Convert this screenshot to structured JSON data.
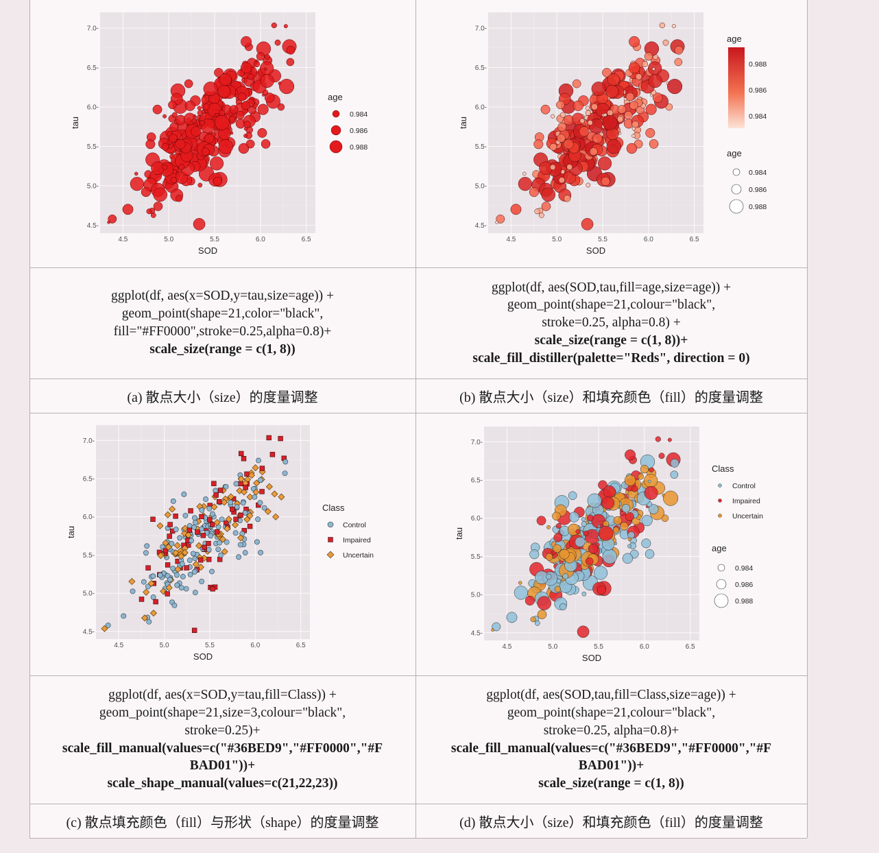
{
  "panels": [
    {
      "id": "a",
      "code_lines": [
        {
          "text": "ggplot(df, aes(x=SOD,y=tau,size=age)) +",
          "bold": false
        },
        {
          "text": "geom_point(shape=21,color=\"black\",",
          "bold": false
        },
        {
          "text": "fill=\"#FF0000\",stroke=0.25,alpha=0.8)+",
          "bold": false
        },
        {
          "text": "scale_size(range = c(1, 8))",
          "bold": true
        }
      ],
      "caption": "(a) 散点大小（size）的度量调整"
    },
    {
      "id": "b",
      "code_lines": [
        {
          "text": "ggplot(df, aes(SOD,tau,fill=age,size=age)) +",
          "bold": false
        },
        {
          "text": "geom_point(shape=21,colour=\"black\",",
          "bold": false
        },
        {
          "text": "stroke=0.25, alpha=0.8) +",
          "bold": false
        },
        {
          "text": "scale_size(range = c(1, 8))+",
          "bold": true
        },
        {
          "text": "scale_fill_distiller(palette=\"Reds\", direction = 0)",
          "bold": true
        }
      ],
      "caption": "(b) 散点大小（size）和填充颜色（fill）的度量调整"
    },
    {
      "id": "c",
      "code_lines": [
        {
          "text": "ggplot(df, aes(x=SOD,y=tau,fill=Class)) +",
          "bold": false
        },
        {
          "text": "geom_point(shape=21,size=3,colour=\"black\",",
          "bold": false
        },
        {
          "text": "stroke=0.25)+",
          "bold": false
        },
        {
          "text": "scale_fill_manual(values=c(\"#36BED9\",\"#FF0000\",\"#F",
          "bold": true
        },
        {
          "text": "BAD01\"))+",
          "bold": true
        },
        {
          "text": "scale_shape_manual(values=c(21,22,23))",
          "bold": true
        }
      ],
      "caption": "(c) 散点填充颜色（fill）与形状（shape）的度量调整"
    },
    {
      "id": "d",
      "code_lines": [
        {
          "text": "ggplot(df, aes(SOD,tau,fill=Class,size=age)) +",
          "bold": false
        },
        {
          "text": "geom_point(shape=21,colour=\"black\",",
          "bold": false
        },
        {
          "text": "stroke=0.25, alpha=0.8)+",
          "bold": false
        },
        {
          "text": "scale_fill_manual(values=c(\"#36BED9\",\"#FF0000\",\"#F",
          "bold": true
        },
        {
          "text": "BAD01\"))+",
          "bold": true
        },
        {
          "text": "scale_size(range = c(1, 8))",
          "bold": true
        }
      ],
      "caption": "(d) 散点大小（size）和填充颜色（fill）的度量调整"
    }
  ],
  "chart_data": [
    {
      "panel": "a",
      "type": "scatter",
      "xlabel": "SOD",
      "ylabel": "tau",
      "xlim": [
        4.25,
        6.6
      ],
      "ylim": [
        4.4,
        7.2
      ],
      "xticks": [
        "4.5",
        "5.0",
        "5.5",
        "6.0",
        "6.5"
      ],
      "yticks": [
        "4.5-",
        "5.0-",
        "5.5-",
        "6.0-",
        "6.5-",
        "7.0-"
      ],
      "mapping": {
        "size": "age",
        "fill": "#FF0000",
        "alpha": 0.8
      },
      "legends": [
        {
          "title": "age",
          "kind": "size",
          "labels": [
            "0.984",
            "0.986",
            "0.988"
          ]
        }
      ]
    },
    {
      "panel": "b",
      "type": "scatter",
      "xlabel": "SOD",
      "ylabel": "tau",
      "xlim": [
        4.25,
        6.6
      ],
      "ylim": [
        4.4,
        7.2
      ],
      "xticks": [
        "4.5",
        "5.0",
        "5.5",
        "6.0",
        "6.5"
      ],
      "yticks": [
        "4.5-",
        "5.0-",
        "5.5-",
        "6.0-",
        "6.5-",
        "7.0-"
      ],
      "mapping": {
        "size": "age",
        "fill": "age (Reds)",
        "alpha": 0.8
      },
      "legends": [
        {
          "title": "age",
          "kind": "colorbar",
          "labels": [
            "0.988",
            "0.986",
            "0.984"
          ]
        },
        {
          "title": "age",
          "kind": "size",
          "labels": [
            "0.984",
            "0.986",
            "0.988"
          ]
        }
      ]
    },
    {
      "panel": "c",
      "type": "scatter",
      "xlabel": "SOD",
      "ylabel": "tau",
      "xlim": [
        4.25,
        6.6
      ],
      "ylim": [
        4.4,
        7.2
      ],
      "xticks": [
        "4.5",
        "5.0",
        "5.5",
        "6.0",
        "6.5"
      ],
      "yticks": [
        "4.5-",
        "5.0-",
        "5.5-",
        "6.0-",
        "6.5-",
        "7.0-"
      ],
      "mapping": {
        "fill": "Class",
        "shape": "Class",
        "size": 3
      },
      "legends": [
        {
          "title": "Class",
          "kind": "shape-fill",
          "labels": [
            "Control",
            "Impaired",
            "Uncertain"
          ]
        }
      ]
    },
    {
      "panel": "d",
      "type": "scatter",
      "xlabel": "SOD",
      "ylabel": "tau",
      "xlim": [
        4.25,
        6.6
      ],
      "ylim": [
        4.4,
        7.2
      ],
      "xticks": [
        "4.5",
        "5.0",
        "5.5",
        "6.0",
        "6.5"
      ],
      "yticks": [
        "4.5-",
        "5.0-",
        "5.5-",
        "6.0-",
        "6.5-",
        "7.0-"
      ],
      "mapping": {
        "fill": "Class",
        "size": "age",
        "alpha": 0.8
      },
      "legends": [
        {
          "title": "Class",
          "kind": "fill",
          "labels": [
            "Control",
            "Impaired",
            "Uncertain"
          ]
        },
        {
          "title": "age",
          "kind": "size",
          "labels": [
            "0.984",
            "0.986",
            "0.988"
          ]
        }
      ]
    }
  ],
  "colors": {
    "control": "#36BED9",
    "impaired": "#FF0000",
    "uncertain": "#FBAD01",
    "reds_dark": "#cb181d",
    "reds_light": "#fcbba1"
  }
}
